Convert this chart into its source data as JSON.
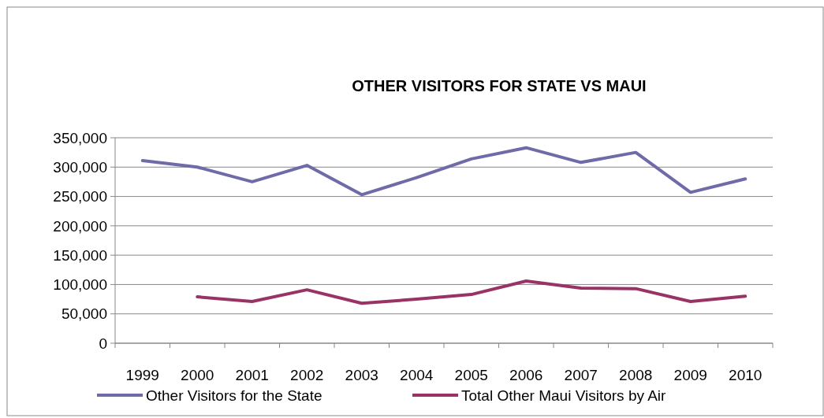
{
  "chart_data": {
    "type": "line",
    "title": "OTHER VISITORS FOR STATE VS MAUI",
    "categories": [
      "1999",
      "2000",
      "2001",
      "2002",
      "2003",
      "2004",
      "2005",
      "2006",
      "2007",
      "2008",
      "2009",
      "2010"
    ],
    "series": [
      {
        "name": "Other Visitors for the State",
        "color": "#6f6aa8",
        "values": [
          311000,
          300000,
          275000,
          303000,
          253000,
          282000,
          314000,
          333000,
          308000,
          325000,
          257000,
          280000
        ]
      },
      {
        "name": "Total Other Maui Visitors by Air",
        "color": "#993366",
        "values": [
          null,
          79000,
          71000,
          91000,
          68000,
          75000,
          83000,
          106000,
          94000,
          93000,
          71000,
          80000
        ]
      }
    ],
    "ylim": [
      0,
      350000
    ],
    "yticks": [
      {
        "value": 0,
        "label": "0"
      },
      {
        "value": 50000,
        "label": "50,000"
      },
      {
        "value": 100000,
        "label": "100,000"
      },
      {
        "value": 150000,
        "label": "150,000"
      },
      {
        "value": 200000,
        "label": "200,000"
      },
      {
        "value": 250000,
        "label": "250,000"
      },
      {
        "value": 300000,
        "label": "300,000"
      },
      {
        "value": 350000,
        "label": "350,000"
      }
    ],
    "grid": "y",
    "legend": "bottom",
    "marker": "none",
    "line_style": "solid"
  }
}
